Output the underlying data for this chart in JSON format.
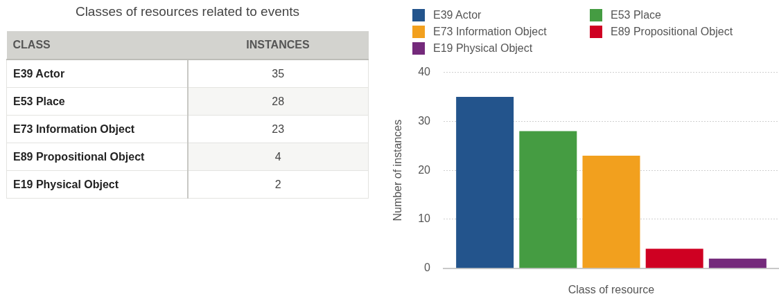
{
  "chart_data": [
    {
      "type": "other",
      "title": "Classes of resources related to events",
      "annotations": [
        "CLASS",
        "INSTANCES"
      ],
      "categories": [
        "E39 Actor",
        "E53 Place",
        "E73 Information Object",
        "E89 Propositional Object",
        "E19 Physical Object"
      ],
      "values": [
        35,
        28,
        23,
        4,
        2
      ],
      "data_labels": true
    },
    {
      "type": "bar",
      "xlabel": "Class of resource",
      "ylabel": "Number of instances",
      "categories": [
        null
      ],
      "series": [
        {
          "name": "E39 Actor",
          "color": "#23548c",
          "values": [
            35
          ]
        },
        {
          "name": "E53 Place",
          "color": "#459c42",
          "values": [
            28
          ]
        },
        {
          "name": "E73 Information Object",
          "color": "#f2a01e",
          "values": [
            23
          ]
        },
        {
          "name": "E89 Propositional Object",
          "color": "#cf0022",
          "values": [
            4
          ]
        },
        {
          "name": "E19 Physical Object",
          "color": "#742a7b",
          "values": [
            2
          ]
        }
      ],
      "ylim": [
        0,
        40
      ],
      "yticks": [
        0,
        10,
        20,
        30,
        40
      ],
      "grid": "y",
      "legend": "top",
      "tick_labels": "y"
    }
  ]
}
